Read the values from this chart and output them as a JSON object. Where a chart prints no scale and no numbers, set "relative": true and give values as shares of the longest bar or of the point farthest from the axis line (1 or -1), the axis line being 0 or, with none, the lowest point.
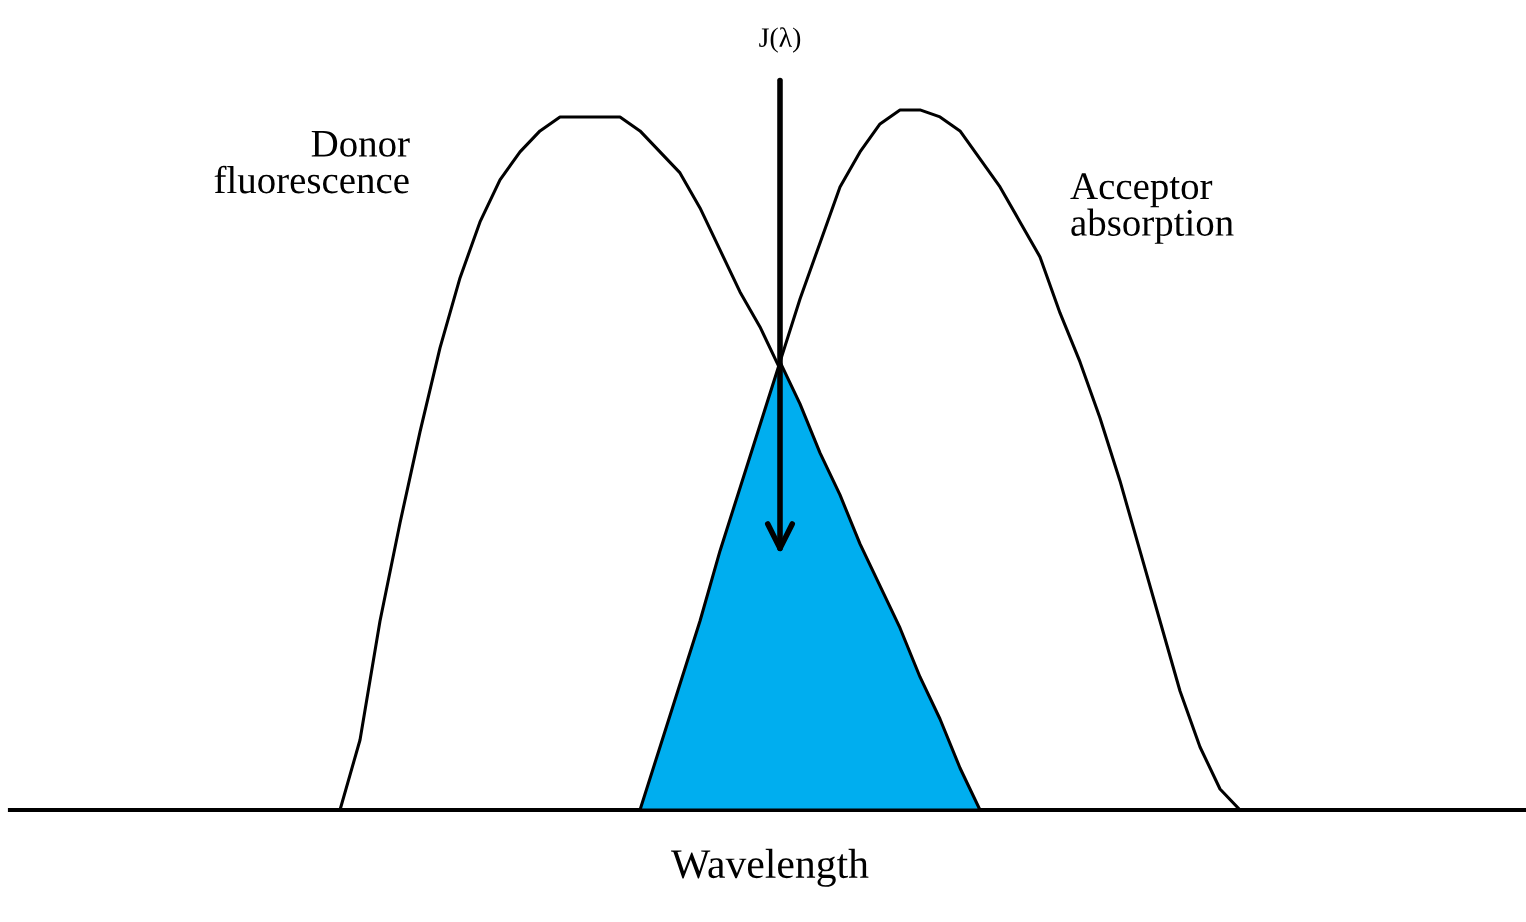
{
  "chart_data": {
    "type": "line",
    "relative": true,
    "xlabel": "Wavelength",
    "legend": false,
    "marker": "none",
    "line_style": "solid",
    "categories": [
      null,
      null,
      null,
      null,
      null,
      null,
      null,
      null,
      null,
      null,
      null,
      null,
      null,
      null,
      null,
      null,
      null,
      null,
      null,
      null,
      null,
      null,
      null,
      null,
      null,
      null,
      null,
      null,
      null,
      null,
      null,
      null,
      null,
      null,
      null,
      null,
      null,
      null,
      null,
      null,
      null,
      null,
      null,
      null,
      null,
      null,
      null,
      null,
      null,
      null,
      null,
      null,
      null,
      null,
      null,
      null,
      null,
      null,
      null,
      null,
      null,
      null,
      null,
      null,
      null,
      null,
      null,
      null,
      null,
      null,
      null,
      null,
      null,
      null,
      null,
      null
    ],
    "series": [
      {
        "name": "Donor fluorescence",
        "color": "#000000",
        "values": [
          null,
          null,
          null,
          null,
          null,
          null,
          null,
          null,
          null,
          null,
          null,
          null,
          null,
          null,
          null,
          null,
          0,
          0.1,
          0.27,
          0.41,
          0.54,
          0.66,
          0.76,
          0.84,
          0.9,
          0.94,
          0.97,
          0.99,
          0.99,
          0.99,
          0.99,
          0.97,
          0.94,
          0.91,
          0.86,
          0.8,
          0.74,
          0.69,
          0.63,
          null,
          null,
          null,
          null,
          null,
          null,
          null,
          null,
          null,
          null,
          null,
          null,
          null,
          null,
          null,
          null,
          null,
          null,
          null,
          null,
          null,
          null,
          null,
          null,
          null,
          null,
          null,
          null,
          null,
          null,
          null,
          null,
          null,
          null,
          null,
          null,
          null
        ]
      },
      {
        "name": "Acceptor absorption",
        "color": "#000000",
        "values": [
          null,
          null,
          null,
          null,
          null,
          null,
          null,
          null,
          null,
          null,
          null,
          null,
          null,
          null,
          null,
          null,
          null,
          null,
          null,
          null,
          null,
          null,
          null,
          null,
          null,
          null,
          null,
          null,
          null,
          null,
          null,
          null,
          null,
          null,
          null,
          null,
          null,
          null,
          0.64,
          0.73,
          0.81,
          0.89,
          0.94,
          0.98,
          1.0,
          1.0,
          0.99,
          0.97,
          0.93,
          0.89,
          0.84,
          0.79,
          0.71,
          0.64,
          0.56,
          0.47,
          0.37,
          0.27,
          0.17,
          0.09,
          0.03,
          0,
          null,
          null,
          null,
          null,
          null,
          null,
          null,
          null,
          null,
          null,
          null,
          null,
          null,
          null
        ]
      },
      {
        "type": "area",
        "color": "#00aeef",
        "values": [
          null,
          null,
          null,
          null,
          null,
          null,
          null,
          null,
          null,
          null,
          null,
          null,
          null,
          null,
          null,
          null,
          null,
          null,
          null,
          null,
          null,
          null,
          null,
          null,
          null,
          null,
          null,
          null,
          null,
          null,
          null,
          0,
          0.09,
          0.18,
          0.27,
          0.37,
          0.46,
          0.55,
          0.64,
          0.58,
          0.51,
          0.45,
          0.38,
          0.32,
          0.26,
          0.19,
          0.13,
          0.06,
          0,
          null,
          null,
          null,
          null,
          null,
          null,
          null,
          null,
          null,
          null,
          null,
          null,
          null,
          null,
          null,
          null,
          null,
          null,
          null,
          null,
          null,
          null,
          null,
          null,
          null,
          null,
          null
        ]
      }
    ],
    "annotations": [
      "J(λ)"
    ]
  }
}
